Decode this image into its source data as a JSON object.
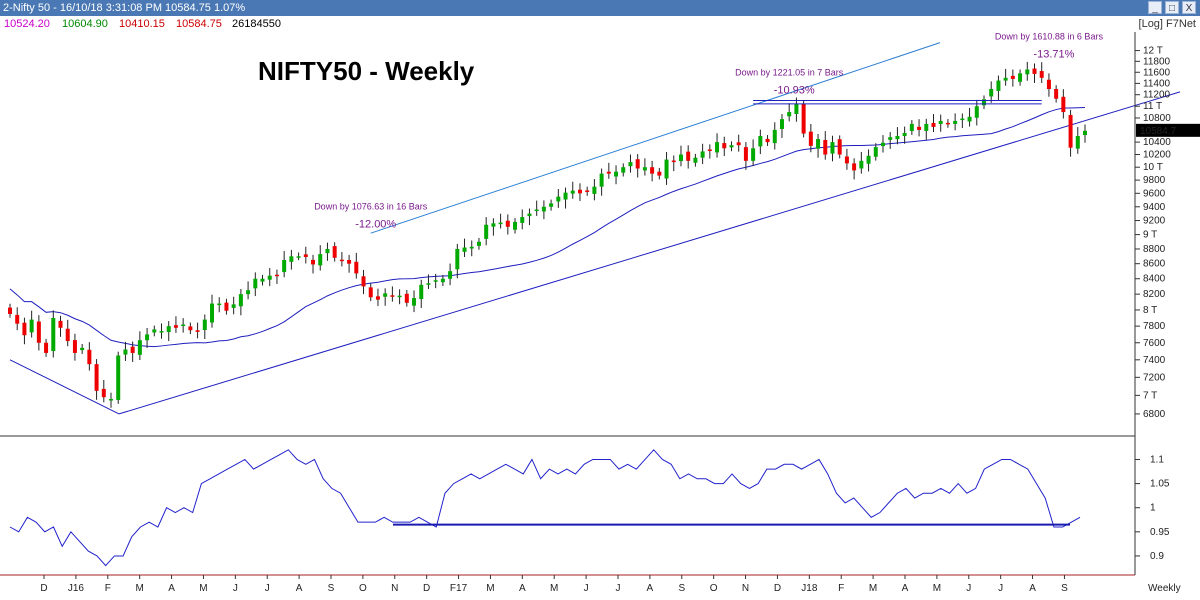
{
  "window": {
    "title": "2-Nifty 50 - 16/10/18 3:31:08 PM 10584.75 1.07%",
    "buttons": [
      "_",
      "□",
      "X"
    ]
  },
  "quote": {
    "open": "10524.20",
    "high": "10604.90",
    "low": "10410.15",
    "close": "10584.75",
    "volume": "26184550",
    "flags": "[Log] F7Net",
    "colors": {
      "open": "#cc00cc",
      "high": "#008800",
      "low": "#cc0000",
      "close": "#cc0000",
      "volume": "#000000"
    }
  },
  "chart_data": [
    {
      "type": "candlestick",
      "title": "NIFTY50 - Weekly",
      "timeframe": "Weekly",
      "scale": "log",
      "ylim": [
        6600,
        12200
      ],
      "y_ticks": [
        "12 T",
        "11800",
        "11600",
        "11400",
        "11200",
        "11 T",
        "10800",
        "10400",
        "10200",
        "10 T",
        "9800",
        "9600",
        "9400",
        "9200",
        "9 T",
        "8800",
        "8600",
        "8400",
        "8200",
        "8 T",
        "7800",
        "7600",
        "7400",
        "7200",
        "7 T",
        "6800"
      ],
      "x_ticks": [
        "D",
        "J16",
        "F",
        "M",
        "A",
        "M",
        "J",
        "J",
        "A",
        "S",
        "O",
        "N",
        "D",
        "F17",
        "M",
        "A",
        "M",
        "J",
        "J",
        "A",
        "S",
        "O",
        "N",
        "D",
        "J18",
        "F",
        "M",
        "A",
        "M",
        "J",
        "J",
        "A",
        "S"
      ],
      "last_price_label": "10584.7",
      "colors": {
        "up": "#00aa00",
        "down": "#ee0000",
        "trend": "#1f1fbf",
        "channel": "#2a7fd4",
        "annotation": "#7a1a8c",
        "indicator": "#2222cc"
      },
      "closes": [
        7950,
        7830,
        7690,
        7880,
        7600,
        7480,
        7900,
        7780,
        7620,
        7480,
        7540,
        7350,
        7050,
        6980,
        6960,
        7450,
        7520,
        7480,
        7630,
        7700,
        7760,
        7740,
        7800,
        7780,
        7820,
        7750,
        7730,
        7880,
        8080,
        8080,
        7990,
        8070,
        8200,
        8250,
        8400,
        8400,
        8440,
        8450,
        8650,
        8700,
        8700,
        8690,
        8590,
        8730,
        8800,
        8680,
        8650,
        8600,
        8470,
        8300,
        8160,
        8130,
        8210,
        8170,
        8180,
        8090,
        8150,
        8320,
        8340,
        8380,
        8400,
        8500,
        8800,
        8820,
        8830,
        8900,
        9140,
        9160,
        9170,
        9110,
        9180,
        9250,
        9300,
        9360,
        9400,
        9450,
        9550,
        9610,
        9640,
        9600,
        9620,
        9700,
        9900,
        9900,
        9930,
        10000,
        10080,
        9980,
        10000,
        9900,
        9870,
        10120,
        10080,
        10200,
        10100,
        10150,
        10250,
        10280,
        10400,
        10300,
        10350,
        10350,
        10100,
        10300,
        10500,
        10400,
        10600,
        10780,
        10900,
        11040,
        10540,
        10340,
        10450,
        10200,
        10400,
        10200,
        10060,
        9950,
        10100,
        10180,
        10320,
        10390,
        10480,
        10500,
        10550,
        10700,
        10600,
        10700,
        10650,
        10750,
        10700,
        10750,
        10790,
        10820,
        11000,
        11120,
        11300,
        11450,
        11500,
        11480,
        11580,
        11650,
        11570,
        11500,
        11300,
        11130,
        10900,
        10310,
        10500,
        10585
      ],
      "annotations": [
        {
          "label": "Down by 1076.63 in 16 Bars",
          "pct": "-12.00%"
        },
        {
          "label": "Down by 1221.05 in 7 Bars",
          "pct": "-10.93%"
        },
        {
          "label": "Down by 1610.88 in 6 Bars",
          "pct": "-13.71%"
        }
      ]
    },
    {
      "type": "line",
      "series_name": "",
      "ylim": [
        0.875,
        1.13
      ],
      "y_ticks": [
        "1.1",
        "1.05",
        "1",
        "0.95",
        "0.9"
      ],
      "reference_value": 0.965,
      "values": [
        0.96,
        0.95,
        0.98,
        0.97,
        0.95,
        0.96,
        0.92,
        0.95,
        0.93,
        0.91,
        0.9,
        0.88,
        0.9,
        0.9,
        0.94,
        0.96,
        0.97,
        0.96,
        1.0,
        0.99,
        1.0,
        0.99,
        1.05,
        1.06,
        1.07,
        1.08,
        1.09,
        1.1,
        1.08,
        1.09,
        1.1,
        1.11,
        1.12,
        1.1,
        1.09,
        1.1,
        1.06,
        1.04,
        1.03,
        1.0,
        0.97,
        0.97,
        0.97,
        0.98,
        0.97,
        0.97,
        0.97,
        0.98,
        0.97,
        0.96,
        1.03,
        1.05,
        1.06,
        1.07,
        1.06,
        1.07,
        1.08,
        1.09,
        1.08,
        1.07,
        1.1,
        1.06,
        1.08,
        1.07,
        1.08,
        1.07,
        1.09,
        1.1,
        1.1,
        1.1,
        1.08,
        1.09,
        1.08,
        1.1,
        1.12,
        1.1,
        1.09,
        1.06,
        1.07,
        1.06,
        1.06,
        1.05,
        1.05,
        1.07,
        1.05,
        1.04,
        1.05,
        1.08,
        1.08,
        1.09,
        1.09,
        1.08,
        1.09,
        1.1,
        1.07,
        1.03,
        1.01,
        1.02,
        1.0,
        0.98,
        0.99,
        1.01,
        1.03,
        1.04,
        1.02,
        1.03,
        1.03,
        1.04,
        1.03,
        1.05,
        1.03,
        1.04,
        1.08,
        1.09,
        1.1,
        1.1,
        1.09,
        1.08,
        1.05,
        1.02,
        0.96,
        0.96,
        0.97,
        0.98
      ]
    }
  ]
}
